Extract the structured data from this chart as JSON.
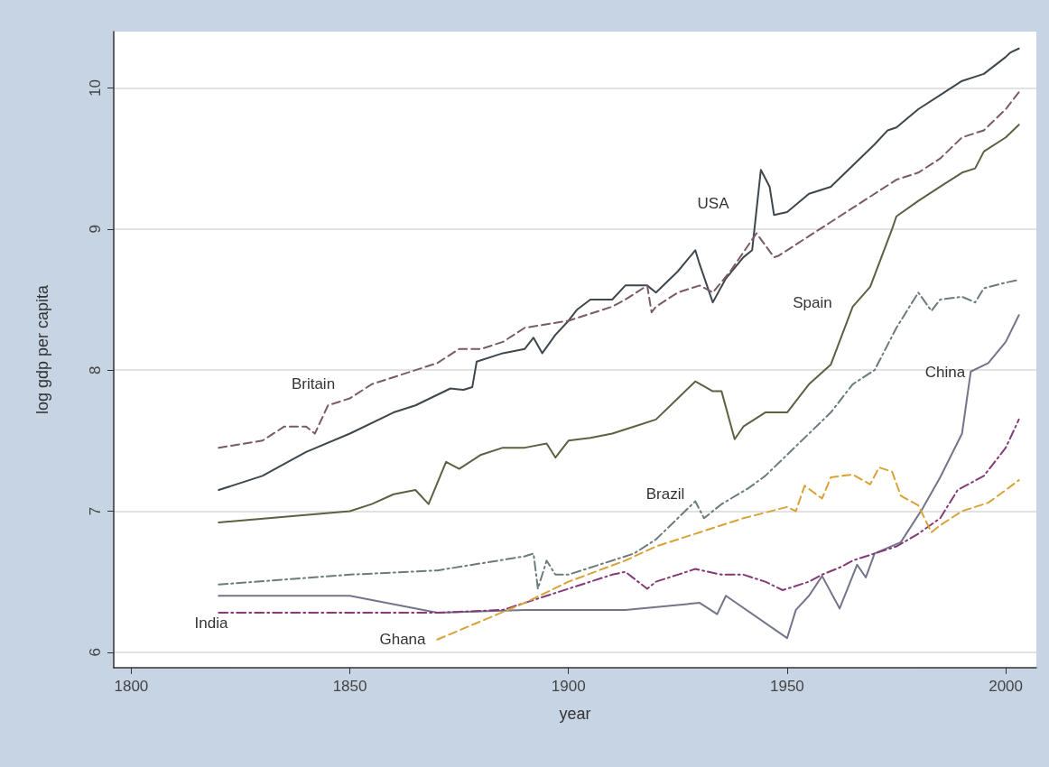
{
  "chart_data": {
    "type": "line",
    "xlabel": "year",
    "ylabel": "log gdp per capita",
    "xlim": [
      1796,
      2007
    ],
    "ylim": [
      5.89,
      10.4
    ],
    "xticks": [
      1800,
      1850,
      1900,
      1950,
      2000
    ],
    "yticks": [
      6,
      7,
      8,
      9,
      10
    ],
    "grid": "y",
    "legend": false,
    "marker": "none",
    "series": [
      {
        "name": "USA",
        "color": "#3e474d",
        "line_style": "solid",
        "x": [
          1820,
          1830,
          1840,
          1850,
          1860,
          1865,
          1873,
          1876,
          1878,
          1879,
          1885,
          1890,
          1892,
          1894,
          1897,
          1900,
          1902,
          1905,
          1910,
          1913,
          1918,
          1920,
          1925,
          1929,
          1930,
          1933,
          1936,
          1940,
          1942,
          1944,
          1946,
          1947,
          1950,
          1955,
          1960,
          1962,
          1965,
          1970,
          1973,
          1975,
          1980,
          1985,
          1990,
          1995,
          2000,
          2001,
          2003
        ],
        "values": [
          7.15,
          7.25,
          7.42,
          7.55,
          7.7,
          7.75,
          7.87,
          7.86,
          7.88,
          8.06,
          8.12,
          8.15,
          8.23,
          8.12,
          8.25,
          8.35,
          8.43,
          8.5,
          8.5,
          8.6,
          8.6,
          8.55,
          8.7,
          8.85,
          8.75,
          8.48,
          8.65,
          8.8,
          8.85,
          9.42,
          9.3,
          9.1,
          9.12,
          9.25,
          9.3,
          9.36,
          9.45,
          9.6,
          9.7,
          9.72,
          9.85,
          9.95,
          10.05,
          10.1,
          10.22,
          10.25,
          10.28
        ]
      },
      {
        "name": "Britain",
        "color": "#7a5a63",
        "line_style": "dashed",
        "x": [
          1820,
          1830,
          1835,
          1840,
          1842,
          1845,
          1850,
          1855,
          1860,
          1865,
          1870,
          1875,
          1880,
          1885,
          1890,
          1900,
          1910,
          1913,
          1918,
          1919,
          1920,
          1925,
          1930,
          1933,
          1937,
          1943,
          1947,
          1948,
          1950,
          1955,
          1960,
          1965,
          1970,
          1975,
          1980,
          1985,
          1990,
          1995,
          2000,
          2003
        ],
        "values": [
          7.45,
          7.5,
          7.6,
          7.6,
          7.55,
          7.75,
          7.8,
          7.9,
          7.95,
          8.0,
          8.05,
          8.15,
          8.15,
          8.2,
          8.3,
          8.35,
          8.45,
          8.5,
          8.6,
          8.41,
          8.45,
          8.55,
          8.6,
          8.55,
          8.7,
          8.97,
          8.8,
          8.81,
          8.85,
          8.95,
          9.05,
          9.15,
          9.25,
          9.35,
          9.4,
          9.5,
          9.65,
          9.7,
          9.85,
          9.97
        ]
      },
      {
        "name": "Spain",
        "color": "#5b6142",
        "line_style": "solid",
        "x": [
          1820,
          1850,
          1855,
          1860,
          1865,
          1868,
          1872,
          1875,
          1880,
          1885,
          1890,
          1895,
          1897,
          1900,
          1905,
          1910,
          1915,
          1920,
          1925,
          1929,
          1933,
          1935,
          1938,
          1940,
          1945,
          1950,
          1955,
          1960,
          1965,
          1969,
          1974,
          1975,
          1980,
          1985,
          1990,
          1993,
          1995,
          2000,
          2003
        ],
        "values": [
          6.92,
          7.0,
          7.05,
          7.12,
          7.15,
          7.05,
          7.35,
          7.3,
          7.4,
          7.45,
          7.45,
          7.48,
          7.38,
          7.5,
          7.52,
          7.55,
          7.6,
          7.65,
          7.8,
          7.92,
          7.85,
          7.85,
          7.51,
          7.6,
          7.7,
          7.7,
          7.9,
          8.04,
          8.45,
          8.59,
          9.0,
          9.09,
          9.2,
          9.3,
          9.4,
          9.43,
          9.55,
          9.65,
          9.74
        ]
      },
      {
        "name": "Brazil",
        "color": "#6c7b7b",
        "line_style": "dashdot",
        "x": [
          1820,
          1850,
          1870,
          1890,
          1892,
          1893,
          1895,
          1897,
          1900,
          1905,
          1910,
          1915,
          1920,
          1925,
          1929,
          1931,
          1935,
          1941,
          1945,
          1950,
          1955,
          1960,
          1965,
          1970,
          1975,
          1980,
          1983,
          1985,
          1990,
          1993,
          1995,
          2000,
          2003
        ],
        "values": [
          6.48,
          6.55,
          6.58,
          6.68,
          6.7,
          6.45,
          6.65,
          6.55,
          6.55,
          6.6,
          6.65,
          6.7,
          6.8,
          6.95,
          7.07,
          6.95,
          7.05,
          7.16,
          7.25,
          7.4,
          7.55,
          7.7,
          7.9,
          8.0,
          8.3,
          8.55,
          8.42,
          8.5,
          8.52,
          8.48,
          8.58,
          8.62,
          8.64
        ]
      },
      {
        "name": "China",
        "color": "#74748a",
        "line_style": "solid",
        "x": [
          1820,
          1850,
          1870,
          1890,
          1913,
          1930,
          1934,
          1936,
          1950,
          1952,
          1955,
          1958,
          1962,
          1966,
          1968,
          1970,
          1976,
          1981,
          1985,
          1990,
          1992,
          1996,
          2000,
          2003
        ],
        "values": [
          6.4,
          6.4,
          6.28,
          6.3,
          6.3,
          6.35,
          6.27,
          6.4,
          6.1,
          6.3,
          6.4,
          6.54,
          6.31,
          6.62,
          6.53,
          6.7,
          6.78,
          7.02,
          7.24,
          7.55,
          7.99,
          8.05,
          8.2,
          8.39
        ]
      },
      {
        "name": "India",
        "color": "#853a78",
        "line_style": "dashdot",
        "x": [
          1820,
          1870,
          1885,
          1890,
          1895,
          1900,
          1905,
          1910,
          1913,
          1918,
          1920,
          1925,
          1929,
          1935,
          1940,
          1945,
          1949,
          1955,
          1958,
          1962,
          1965,
          1970,
          1975,
          1980,
          1985,
          1989,
          1995,
          2000,
          2003
        ],
        "values": [
          6.28,
          6.28,
          6.3,
          6.35,
          6.4,
          6.45,
          6.5,
          6.55,
          6.57,
          6.45,
          6.5,
          6.55,
          6.59,
          6.55,
          6.55,
          6.5,
          6.44,
          6.5,
          6.55,
          6.6,
          6.65,
          6.7,
          6.75,
          6.84,
          6.95,
          7.15,
          7.25,
          7.45,
          7.65
        ]
      },
      {
        "name": "Ghana",
        "color": "#d9a236",
        "line_style": "dashed",
        "x": [
          1870,
          1890,
          1900,
          1913,
          1920,
          1930,
          1940,
          1950,
          1952,
          1954,
          1958,
          1960,
          1965,
          1969,
          1971,
          1974,
          1976,
          1980,
          1983,
          1985,
          1990,
          1996,
          2000,
          2003
        ],
        "values": [
          6.09,
          6.35,
          6.5,
          6.65,
          6.75,
          6.85,
          6.95,
          7.03,
          7.0,
          7.18,
          7.09,
          7.24,
          7.26,
          7.19,
          7.31,
          7.28,
          7.11,
          7.04,
          6.85,
          6.9,
          7.0,
          7.06,
          7.15,
          7.22
        ]
      }
    ]
  }
}
